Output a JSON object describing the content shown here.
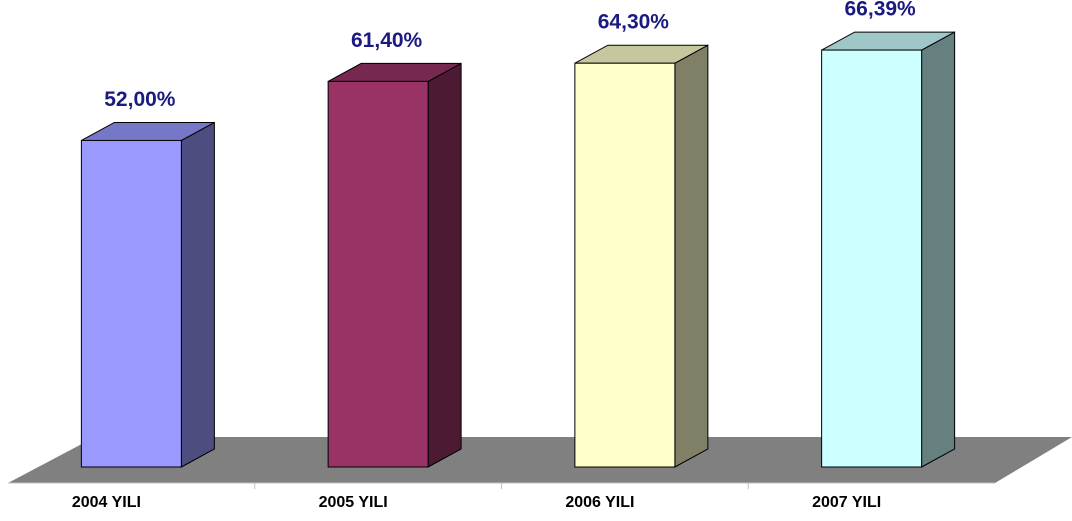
{
  "chart_data": {
    "type": "bar3d",
    "categories": [
      "2004 YILI",
      "2005 YILI",
      "2006 YILI",
      "2007 YILI"
    ],
    "values": [
      52.0,
      61.4,
      64.3,
      66.39
    ],
    "value_labels": [
      "52,00%",
      "61,40%",
      "64,30%",
      "66,39%"
    ],
    "colors": [
      "#9999ff",
      "#993366",
      "#ffffcc",
      "#ccffff"
    ]
  }
}
